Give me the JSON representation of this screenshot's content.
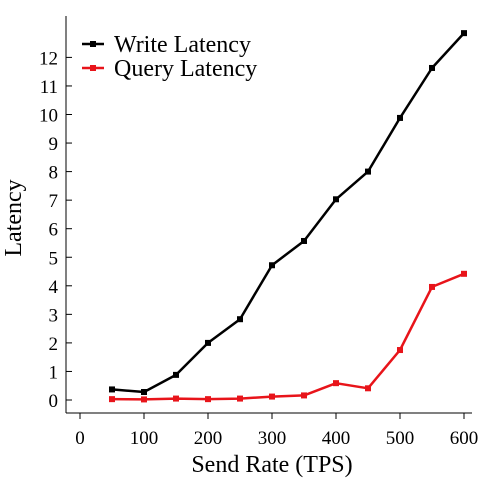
{
  "chart_data": {
    "type": "line",
    "title": "",
    "xlabel": "Send Rate (TPS)",
    "ylabel": "Latency",
    "xlim": [
      0,
      600
    ],
    "ylim": [
      0,
      12.9
    ],
    "x_ticks": [
      0,
      100,
      200,
      300,
      400,
      500,
      600
    ],
    "y_ticks": [
      0,
      1,
      2,
      3,
      4,
      5,
      6,
      7,
      8,
      9,
      10,
      11,
      12
    ],
    "grid": false,
    "legend_position": "top-left",
    "x": [
      50,
      100,
      150,
      200,
      250,
      300,
      350,
      400,
      450,
      500,
      550,
      600
    ],
    "series": [
      {
        "name": "Write Latency",
        "color": "#000000",
        "marker": "square",
        "values": [
          0.37,
          0.28,
          0.88,
          2.0,
          2.83,
          4.72,
          5.57,
          7.03,
          8.0,
          9.88,
          11.63,
          12.85
        ]
      },
      {
        "name": "Query Latency",
        "color": "#e8141a",
        "marker": "square",
        "values": [
          0.03,
          0.02,
          0.05,
          0.03,
          0.05,
          0.12,
          0.16,
          0.59,
          0.41,
          1.75,
          3.96,
          4.42
        ]
      }
    ]
  }
}
